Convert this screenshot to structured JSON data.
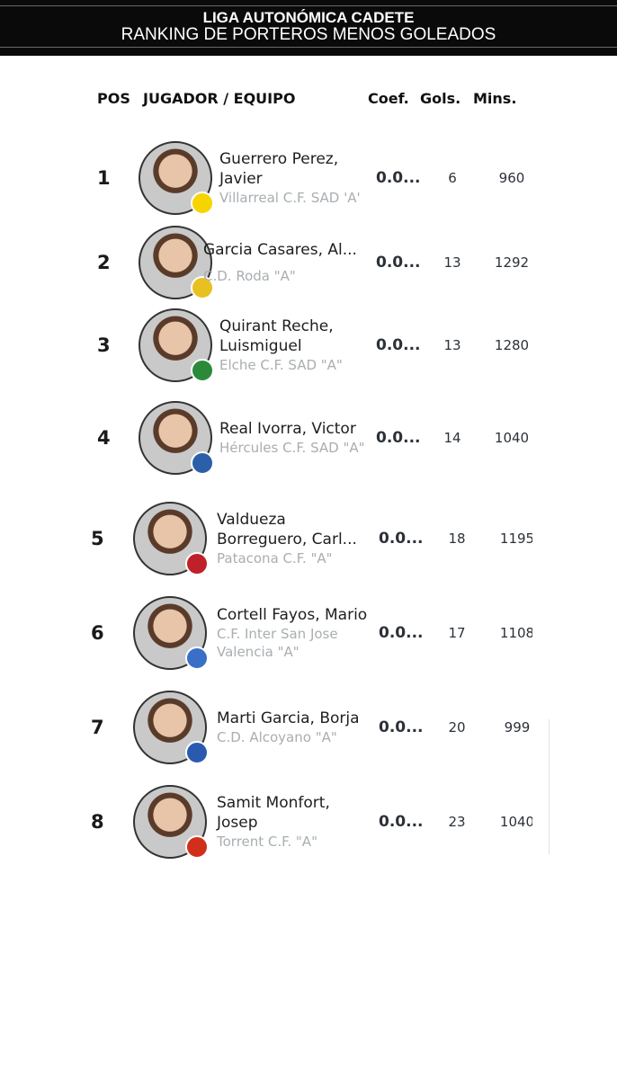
{
  "banner": {
    "title": "LIGA AUTONÓMICA CADETE",
    "subtitle": "RANKING DE PORTEROS MENOS GOLEADOS"
  },
  "header": {
    "pos": "POS",
    "player": "JUGADOR / EQUIPO",
    "coef": "Coef.",
    "gols": "Gols.",
    "mins": "Mins."
  },
  "rows": [
    {
      "pos": "1",
      "name": "Guerrero Perez, Javier",
      "team": "Villarreal C.F. SAD 'A'",
      "coef": "0.0...",
      "gols": "6",
      "mins": "960",
      "badge_color": "#f5d400"
    },
    {
      "pos": "2",
      "name": "Garcia Casares, Al...",
      "team": "C.D. Roda \"A\"",
      "coef": "0.0...",
      "gols": "13",
      "mins": "1292",
      "badge_color": "#e8c020"
    },
    {
      "pos": "3",
      "name": "Quirant Reche, Luismiguel",
      "team": "Elche C.F. SAD \"A\"",
      "coef": "0.0...",
      "gols": "13",
      "mins": "1280",
      "badge_color": "#2a8a3a"
    },
    {
      "pos": "4",
      "name": "Real Ivorra, Victor",
      "team": "Hércules C.F. SAD \"A\"",
      "coef": "0.0...",
      "gols": "14",
      "mins": "1040",
      "badge_color": "#2b5fa8"
    },
    {
      "pos": "5",
      "name": "Valdueza Borreguero, Carl...",
      "team": "Patacona C.F. \"A\"",
      "coef": "0.0...",
      "gols": "18",
      "mins": "1195",
      "badge_color": "#c0202a"
    },
    {
      "pos": "6",
      "name": "Cortell Fayos, Mario",
      "team": "C.F. Inter San Jose Valencia \"A\"",
      "coef": "0.0...",
      "gols": "17",
      "mins": "1108",
      "badge_color": "#3a6fc8"
    },
    {
      "pos": "7",
      "name": "Marti Garcia, Borja",
      "team": "C.D. Alcoyano \"A\"",
      "coef": "0.0...",
      "gols": "20",
      "mins": "999",
      "badge_color": "#2a5ab0"
    },
    {
      "pos": "8",
      "name": "Samit Monfort, Josep",
      "team": "Torrent C.F. \"A\"",
      "coef": "0.0...",
      "gols": "23",
      "mins": "1040",
      "badge_color": "#d0301a"
    }
  ]
}
